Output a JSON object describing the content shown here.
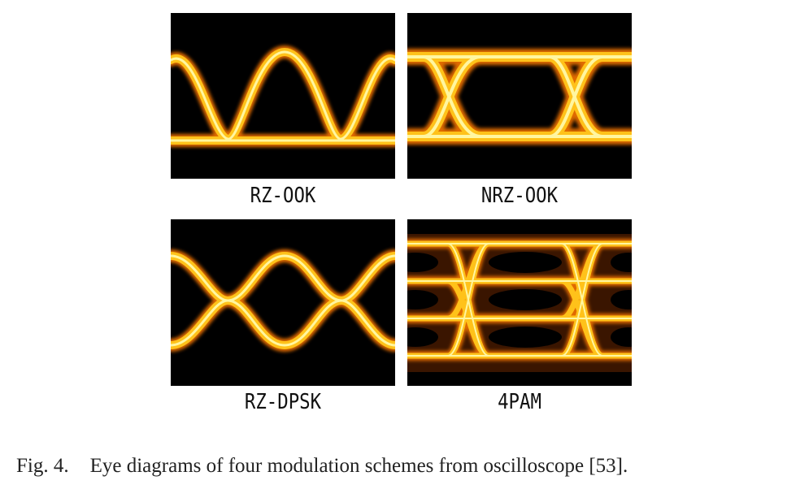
{
  "figure": {
    "panels": [
      {
        "label": "RZ-OOK"
      },
      {
        "label": "NRZ-OOK"
      },
      {
        "label": "RZ-DPSK"
      },
      {
        "label": "4PAM"
      }
    ],
    "caption": {
      "number": "Fig. 4.",
      "text": "Eye diagrams of four modulation schemes from oscilloscope [53]."
    }
  },
  "colors": {
    "background": "#000000",
    "trace_core": "#fff6a0",
    "trace_mid": "#ffc21a",
    "trace_edge": "#e06a00"
  }
}
